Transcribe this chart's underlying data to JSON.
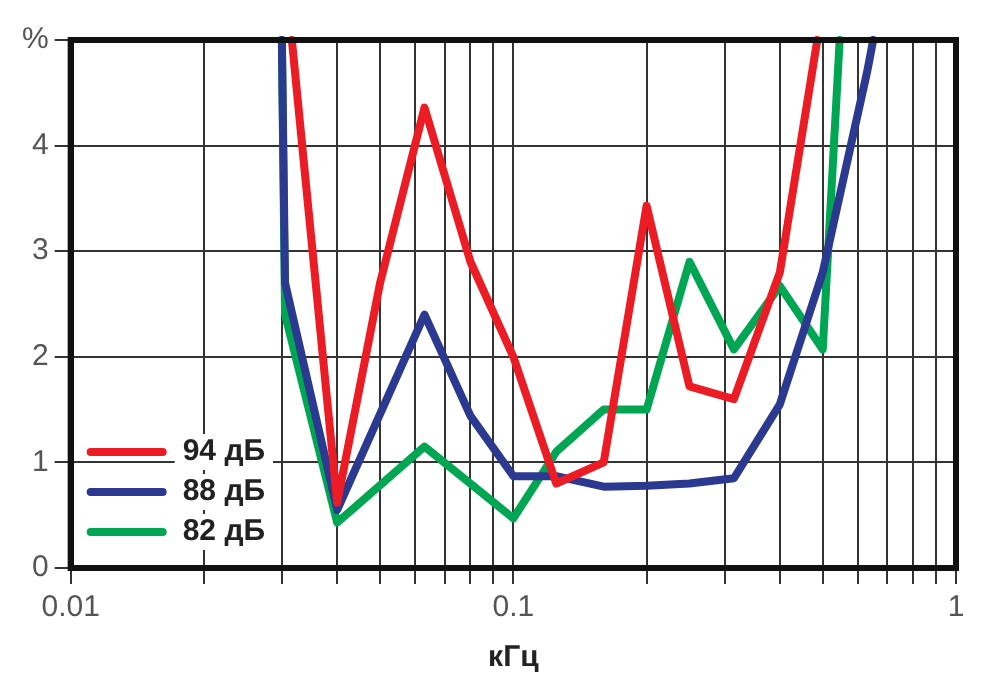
{
  "chart_data": {
    "type": "line",
    "xlabel": "кГц",
    "log": "x",
    "grid": true,
    "legend": "bottom left",
    "marker": "none",
    "line_style": "solid",
    "xlim": [
      0.01,
      1
    ],
    "ylim": [
      0,
      5
    ],
    "xticks": [
      0.01,
      {
        "value": 0.02,
        "label": null
      },
      {
        "value": 0.03,
        "label": null
      },
      {
        "value": 0.04,
        "label": null
      },
      {
        "value": 0.05,
        "label": null
      },
      {
        "value": 0.06,
        "label": null
      },
      {
        "value": 0.07,
        "label": null
      },
      {
        "value": 0.08,
        "label": null
      },
      {
        "value": 0.09,
        "label": null
      },
      0.1,
      {
        "value": 0.2,
        "label": null
      },
      {
        "value": 0.3,
        "label": null
      },
      {
        "value": 0.4,
        "label": null
      },
      {
        "value": 0.5,
        "label": null
      },
      {
        "value": 0.6,
        "label": null
      },
      {
        "value": 0.7,
        "label": null
      },
      {
        "value": 0.8,
        "label": null
      },
      {
        "value": 0.9,
        "label": null
      },
      1
    ],
    "yticks": [
      0,
      1,
      2,
      3,
      4,
      {
        "value": 5,
        "label": "%"
      }
    ],
    "series": [
      {
        "name": "94 дБ",
        "color": "#ec1c24",
        "x": [
          0.0316,
          0.04,
          0.05,
          0.063,
          0.08,
          0.1,
          0.125,
          0.16,
          0.2,
          0.25,
          0.315,
          0.4,
          0.486
        ],
        "values": [
          5,
          0.62,
          2.7,
          4.36,
          2.9,
          2.0,
          0.8,
          1.0,
          3.43,
          1.72,
          1.6,
          2.8,
          5
        ]
      },
      {
        "name": "88 дБ",
        "color": "#2b3990",
        "x": [
          0.03,
          0.0305,
          0.04,
          0.063,
          0.08,
          0.1,
          0.125,
          0.16,
          0.2,
          0.25,
          0.315,
          0.4,
          0.5,
          0.63,
          0.65
        ],
        "values": [
          5,
          2.7,
          0.55,
          2.4,
          1.44,
          0.87,
          0.87,
          0.77,
          0.78,
          0.8,
          0.85,
          1.55,
          2.8,
          4.7,
          5
        ]
      },
      {
        "name": "82 дБ",
        "color": "#00a651",
        "x": [
          0.03,
          0.0305,
          0.04,
          0.063,
          0.08,
          0.1,
          0.125,
          0.16,
          0.2,
          0.25,
          0.315,
          0.4,
          0.5,
          0.546
        ],
        "values": [
          5,
          2.4,
          0.43,
          1.15,
          0.8,
          0.47,
          1.1,
          1.5,
          1.5,
          2.9,
          2.07,
          2.67,
          2.07,
          5
        ]
      }
    ]
  }
}
